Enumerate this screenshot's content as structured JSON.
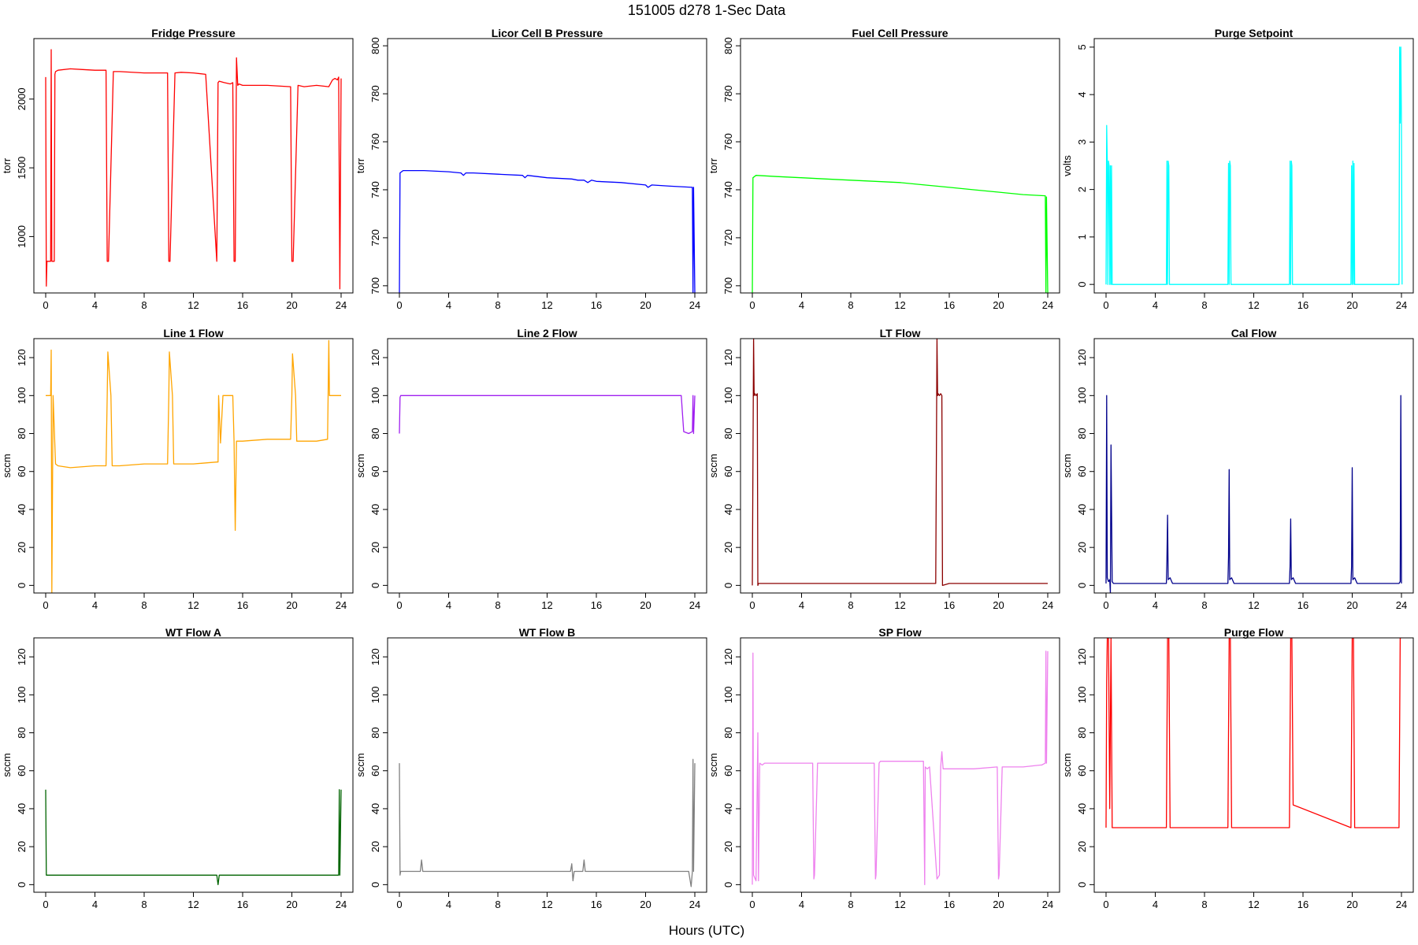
{
  "figure": {
    "title": "151005    d278    1-Sec Data",
    "xlabel": "Hours (UTC)"
  },
  "chart_data": [
    {
      "type": "line",
      "title": "Fridge Pressure",
      "ylabel": "torr",
      "color": "#ff0000",
      "xlim": [
        -0.96,
        24.96
      ],
      "ylim": [
        590,
        2440
      ],
      "xticks": [
        0,
        4,
        8,
        12,
        16,
        20,
        24
      ],
      "yticks": [
        1000,
        1500,
        2000
      ],
      "series": [
        {
          "x": [
            0,
            0.05,
            0.1,
            0.2,
            0.4,
            0.45,
            0.5,
            0.6,
            0.7,
            0.75,
            0.8,
            1,
            2,
            3,
            4,
            4.9,
            5,
            5.1,
            5.5,
            6,
            8,
            9.9,
            10,
            10.1,
            10.5,
            11,
            12,
            13,
            13.9,
            14,
            14.1,
            14.5,
            15,
            15.2,
            15.3,
            15.4,
            15.5,
            15.6,
            15.7,
            16,
            18,
            19.9,
            20,
            20.1,
            20.5,
            21,
            22,
            23,
            23.3,
            23.5,
            23.7,
            23.8,
            23.9,
            24
          ],
          "y": [
            2160,
            640,
            820,
            820,
            820,
            2360,
            820,
            820,
            820,
            2180,
            2200,
            2210,
            2220,
            2215,
            2210,
            2210,
            820,
            820,
            2200,
            2200,
            2190,
            2190,
            820,
            820,
            2190,
            2195,
            2190,
            2180,
            820,
            2120,
            2130,
            2120,
            2110,
            2120,
            820,
            820,
            2300,
            2100,
            2110,
            2100,
            2100,
            2090,
            820,
            820,
            2100,
            2090,
            2100,
            2090,
            2140,
            2150,
            2140,
            2160,
            620,
            2150
          ]
        }
      ]
    },
    {
      "type": "line",
      "title": "Licor Cell B Pressure",
      "ylabel": "torr",
      "color": "#0000ff",
      "xlim": [
        -0.96,
        24.96
      ],
      "ylim": [
        697,
        803
      ],
      "xticks": [
        0,
        4,
        8,
        12,
        16,
        20,
        24
      ],
      "yticks": [
        700,
        720,
        740,
        760,
        780,
        800
      ],
      "series": [
        {
          "x": [
            0,
            0.05,
            0.3,
            1,
            2,
            4,
            5,
            5.2,
            5.4,
            6,
            8,
            10,
            10.2,
            10.4,
            12,
            14,
            14.5,
            15,
            15.3,
            15.6,
            16,
            18,
            20,
            20.2,
            20.5,
            22,
            23.8,
            23.85,
            23.9,
            24
          ],
          "y": [
            697,
            747,
            748,
            748,
            748,
            747.5,
            747,
            746,
            747,
            747,
            746.5,
            746,
            745,
            746,
            745,
            744.5,
            744,
            744,
            743,
            744,
            743.5,
            743,
            742,
            741,
            742,
            741.5,
            741,
            697,
            741,
            697
          ]
        }
      ]
    },
    {
      "type": "line",
      "title": "Fuel Cell Pressure",
      "ylabel": "torr",
      "color": "#00ff00",
      "xlim": [
        -0.96,
        24.96
      ],
      "ylim": [
        697,
        803
      ],
      "xticks": [
        0,
        4,
        8,
        12,
        16,
        20,
        24
      ],
      "yticks": [
        700,
        720,
        740,
        760,
        780,
        800
      ],
      "series": [
        {
          "x": [
            0,
            0.05,
            0.3,
            2,
            4,
            6,
            8,
            10,
            12,
            14,
            16,
            18,
            20,
            22,
            23.8,
            23.85,
            23.9,
            24
          ],
          "y": [
            697,
            745,
            746,
            745.5,
            745,
            744.5,
            744,
            743.5,
            743,
            742,
            741,
            740,
            739,
            738,
            737.5,
            697,
            737,
            697
          ]
        }
      ]
    },
    {
      "type": "line",
      "title": "Purge Setpoint",
      "ylabel": "volts",
      "color": "#00ffff",
      "xlim": [
        -0.96,
        24.96
      ],
      "ylim": [
        -0.18,
        5.18
      ],
      "xticks": [
        0,
        4,
        8,
        12,
        16,
        20,
        24
      ],
      "yticks": [
        0,
        1,
        2,
        3,
        4,
        5
      ],
      "series": [
        {
          "x": [
            0,
            0.05,
            0.1,
            0.15,
            0.2,
            0.25,
            0.3,
            0.35,
            0.4,
            0.45,
            0.5,
            4.9,
            4.95,
            5,
            5.05,
            5.1,
            5.15,
            9.9,
            9.95,
            10,
            10.05,
            10.1,
            10.15,
            14.9,
            14.95,
            15,
            15.05,
            15.1,
            15.15,
            19.9,
            19.95,
            20,
            20.05,
            20.1,
            20.15,
            20.2,
            23.8,
            23.85,
            23.9,
            23.95,
            24,
            24.05
          ],
          "y": [
            0,
            3.35,
            2.6,
            0,
            2.6,
            2.5,
            0,
            2.5,
            0,
            2.5,
            0,
            0,
            2.6,
            0,
            2.6,
            2.5,
            0,
            0,
            2.55,
            0,
            2.6,
            2.5,
            0,
            0,
            2.6,
            0,
            2.6,
            2.5,
            0,
            0,
            2.5,
            0,
            2.6,
            0,
            2.55,
            0,
            0,
            5,
            3.4,
            5,
            3.4,
            0
          ]
        }
      ]
    },
    {
      "type": "line",
      "title": "Line 1 Flow",
      "ylabel": "sccm",
      "color": "#ffa500",
      "xlim": [
        -0.96,
        24.96
      ],
      "ylim": [
        -4,
        130
      ],
      "xticks": [
        0,
        4,
        8,
        12,
        16,
        20,
        24
      ],
      "yticks": [
        0,
        20,
        40,
        60,
        80,
        100,
        120
      ],
      "series": [
        {
          "x": [
            0,
            0.4,
            0.45,
            0.5,
            0.6,
            0.8,
            1,
            2,
            4,
            4.9,
            5,
            5.05,
            5.3,
            5.4,
            6,
            8,
            9.9,
            10,
            10.05,
            10.3,
            10.4,
            12,
            13.9,
            14,
            14.05,
            14.2,
            14.4,
            15,
            15.2,
            15.3,
            15.4,
            15.5,
            16,
            18,
            19.9,
            20,
            20.05,
            20.3,
            20.4,
            22,
            22.9,
            23,
            23.05,
            23.3,
            24
          ],
          "y": [
            100,
            100,
            124,
            -4,
            100,
            64,
            63,
            62,
            63,
            63,
            100,
            123,
            100,
            63,
            63,
            64,
            64,
            100,
            123,
            100,
            64,
            64,
            65,
            65,
            100,
            75,
            100,
            100,
            100,
            76,
            29,
            76,
            76,
            77,
            77,
            100,
            122,
            100,
            76,
            76,
            77,
            129,
            100,
            100,
            100
          ]
        }
      ]
    },
    {
      "type": "line",
      "title": "Line 2 Flow",
      "ylabel": "sccm",
      "color": "#a020f0",
      "xlim": [
        -0.96,
        24.96
      ],
      "ylim": [
        -4,
        130
      ],
      "xticks": [
        0,
        4,
        8,
        12,
        16,
        20,
        24
      ],
      "yticks": [
        0,
        20,
        40,
        60,
        80,
        100,
        120
      ],
      "series": [
        {
          "x": [
            0,
            0.05,
            0.1,
            4,
            8,
            12,
            16,
            20,
            22.9,
            23,
            23.1,
            23.5,
            23.8,
            23.85,
            23.9,
            24
          ],
          "y": [
            80,
            99,
            100,
            100,
            100,
            100,
            100,
            100,
            100,
            90,
            81,
            80,
            81,
            100,
            80,
            100
          ]
        }
      ]
    },
    {
      "type": "line",
      "title": "LT Flow",
      "ylabel": "sccm",
      "color": "#8b0000",
      "xlim": [
        -0.96,
        24.96
      ],
      "ylim": [
        -4,
        130
      ],
      "xticks": [
        0,
        4,
        8,
        12,
        16,
        20,
        24
      ],
      "yticks": [
        0,
        20,
        40,
        60,
        80,
        100,
        120
      ],
      "series": [
        {
          "x": [
            0,
            0.1,
            0.15,
            0.2,
            0.3,
            0.4,
            0.45,
            0.5,
            2,
            4,
            8,
            12,
            14.9,
            15,
            15.05,
            15.1,
            15.2,
            15.3,
            15.4,
            15.45,
            16,
            20,
            24
          ],
          "y": [
            0,
            130,
            100,
            101,
            100,
            101,
            0,
            1,
            1,
            1,
            1,
            1,
            1,
            130,
            100,
            101,
            100,
            101,
            100,
            0,
            1,
            1,
            1
          ]
        }
      ]
    },
    {
      "type": "line",
      "title": "Cal Flow",
      "ylabel": "sccm",
      "color": "#00008b",
      "xlim": [
        -0.96,
        24.96
      ],
      "ylim": [
        -4,
        130
      ],
      "xticks": [
        0,
        4,
        8,
        12,
        16,
        20,
        24
      ],
      "yticks": [
        0,
        20,
        40,
        60,
        80,
        100,
        120
      ],
      "series": [
        {
          "x": [
            0,
            0.05,
            0.1,
            0.2,
            0.3,
            0.35,
            0.4,
            0.5,
            0.6,
            4.9,
            4.95,
            5,
            5.05,
            5.2,
            5.4,
            9.9,
            9.95,
            10,
            10.05,
            10.2,
            10.4,
            14.9,
            14.95,
            15,
            15.05,
            15.2,
            15.4,
            19.9,
            19.95,
            20,
            20.05,
            20.2,
            20.4,
            23.8,
            23.9,
            23.95,
            24
          ],
          "y": [
            1,
            100,
            4,
            2,
            3,
            -4,
            74,
            2,
            1,
            1,
            14,
            37,
            3,
            4,
            1,
            1,
            15,
            61,
            3,
            4,
            1,
            1,
            10,
            35,
            3,
            4,
            1,
            1,
            10,
            62,
            3,
            4,
            1,
            1,
            2,
            100,
            1
          ]
        }
      ]
    },
    {
      "type": "line",
      "title": "WT Flow A",
      "ylabel": "sccm",
      "color": "#006400",
      "xlim": [
        -0.96,
        24.96
      ],
      "ylim": [
        -4,
        130
      ],
      "xticks": [
        0,
        4,
        8,
        12,
        16,
        20,
        24
      ],
      "yticks": [
        0,
        20,
        40,
        60,
        80,
        100,
        120
      ],
      "series": [
        {
          "x": [
            0,
            0.05,
            0.1,
            4,
            8,
            12,
            13.9,
            14,
            14.1,
            16,
            20,
            23.8,
            23.85,
            23.9,
            24
          ],
          "y": [
            50,
            5,
            5,
            5,
            5,
            5,
            5,
            0,
            5,
            5,
            5,
            5,
            50,
            5,
            50
          ]
        }
      ]
    },
    {
      "type": "line",
      "title": "WT Flow B",
      "ylabel": "sccm",
      "color": "#808080",
      "xlim": [
        -0.96,
        24.96
      ],
      "ylim": [
        -4,
        130
      ],
      "xticks": [
        0,
        4,
        8,
        12,
        16,
        20,
        24
      ],
      "yticks": [
        0,
        20,
        40,
        60,
        80,
        100,
        120
      ],
      "series": [
        {
          "x": [
            0,
            0.05,
            0.1,
            1.7,
            1.8,
            1.9,
            4,
            8,
            12,
            13.9,
            14,
            14.1,
            14.2,
            14.9,
            15,
            15.1,
            16,
            20,
            23.5,
            23.7,
            23.8,
            23.85,
            23.9,
            24
          ],
          "y": [
            64,
            5,
            7,
            7,
            13,
            7,
            7,
            7,
            7,
            7,
            11,
            2,
            7,
            7,
            13,
            7,
            7,
            7,
            7,
            -1,
            7,
            66,
            7,
            64
          ]
        }
      ]
    },
    {
      "type": "line",
      "title": "SP Flow",
      "ylabel": "sccm",
      "color": "#ee82ee",
      "xlim": [
        -0.96,
        24.96
      ],
      "ylim": [
        -4,
        130
      ],
      "xticks": [
        0,
        4,
        8,
        12,
        16,
        20,
        24
      ],
      "yticks": [
        0,
        20,
        40,
        60,
        80,
        100,
        120
      ],
      "series": [
        {
          "x": [
            0,
            0.05,
            0.1,
            0.3,
            0.45,
            0.5,
            0.6,
            0.8,
            1,
            2,
            4,
            4.9,
            5,
            5.05,
            5.3,
            5.4,
            6,
            8,
            9.9,
            10,
            10.05,
            10.3,
            10.4,
            12,
            13.9,
            14,
            14.05,
            14.2,
            14.4,
            15,
            15.2,
            15.3,
            15.4,
            15.5,
            16,
            18,
            19.9,
            20,
            20.05,
            20.3,
            20.4,
            22,
            23.4,
            23.5,
            23.8,
            23.85,
            23.9,
            24
          ],
          "y": [
            0,
            122,
            5,
            2,
            80,
            2,
            64,
            63,
            64,
            64,
            64,
            64,
            3,
            5,
            64,
            64,
            64,
            64,
            64,
            3,
            5,
            64,
            65,
            65,
            65,
            0,
            62,
            61,
            62,
            3,
            5,
            62,
            70,
            61,
            61,
            61,
            62,
            3,
            5,
            62,
            62,
            62,
            63,
            63,
            64,
            123,
            64,
            123
          ]
        }
      ]
    },
    {
      "type": "line",
      "title": "Purge Flow",
      "ylabel": "sccm",
      "color": "#ff0000",
      "xlim": [
        -0.96,
        24.96
      ],
      "ylim": [
        -4,
        130
      ],
      "xticks": [
        0,
        4,
        8,
        12,
        16,
        20,
        24
      ],
      "yticks": [
        0,
        20,
        40,
        60,
        80,
        100,
        120
      ],
      "series": [
        {
          "x": [
            0,
            0.05,
            0.1,
            0.15,
            0.2,
            0.3,
            0.4,
            0.5,
            4.9,
            5,
            5.1,
            5.2,
            9.9,
            10,
            10.1,
            10.2,
            14.9,
            15,
            15.1,
            15.2,
            19.9,
            20,
            20.1,
            20.2,
            23.8,
            23.9,
            24
          ],
          "y": [
            30,
            107,
            130,
            130,
            130,
            40,
            130,
            30,
            30,
            130,
            130,
            30,
            30,
            130,
            130,
            30,
            30,
            130,
            130,
            42,
            30,
            130,
            130,
            30,
            30,
            130,
            130
          ]
        }
      ]
    }
  ]
}
